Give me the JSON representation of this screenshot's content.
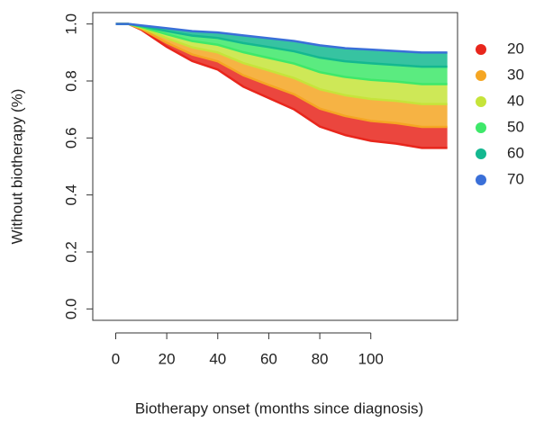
{
  "chart_data": {
    "type": "line",
    "x_label": "Biotherapy onset (months since diagnosis)",
    "y_label": "Without biotherapy (%)",
    "x": [
      0,
      5,
      10,
      20,
      30,
      40,
      50,
      60,
      70,
      80,
      90,
      100,
      110,
      120,
      130
    ],
    "series": [
      {
        "name": "20",
        "color": "#e8261c",
        "values": [
          1,
          1,
          0.98,
          0.92,
          0.87,
          0.84,
          0.78,
          0.74,
          0.7,
          0.64,
          0.61,
          0.59,
          0.58,
          0.565,
          0.565
        ]
      },
      {
        "name": "30",
        "color": "#f5a623",
        "values": [
          1,
          1,
          0.983,
          0.934,
          0.893,
          0.869,
          0.82,
          0.786,
          0.753,
          0.703,
          0.677,
          0.66,
          0.652,
          0.639,
          0.639
        ]
      },
      {
        "name": "40",
        "color": "#c6e43a",
        "values": [
          1,
          1,
          0.987,
          0.95,
          0.918,
          0.9,
          0.863,
          0.837,
          0.81,
          0.771,
          0.75,
          0.737,
          0.73,
          0.719,
          0.719
        ]
      },
      {
        "name": "50",
        "color": "#3ee86a",
        "values": [
          1,
          1,
          0.99,
          0.964,
          0.94,
          0.927,
          0.901,
          0.881,
          0.861,
          0.831,
          0.814,
          0.804,
          0.798,
          0.789,
          0.789
        ]
      },
      {
        "name": "60",
        "color": "#14b890",
        "values": [
          1,
          1,
          0.993,
          0.975,
          0.959,
          0.951,
          0.933,
          0.919,
          0.904,
          0.882,
          0.869,
          0.862,
          0.856,
          0.85,
          0.85
        ]
      },
      {
        "name": "70",
        "color": "#3a6fd8",
        "values": [
          1,
          1,
          0.995,
          0.985,
          0.975,
          0.97,
          0.96,
          0.95,
          0.94,
          0.925,
          0.915,
          0.91,
          0.905,
          0.9,
          0.9
        ]
      }
    ],
    "xlim": [
      -9,
      134
    ],
    "ylim": [
      -0.04,
      1.04
    ],
    "xticks": [
      0,
      20,
      40,
      60,
      80,
      100
    ],
    "yticks": [
      {
        "value": 0,
        "label": "0.0"
      },
      {
        "value": 0.2,
        "label": "0.2"
      },
      {
        "value": 0.4,
        "label": "0.4"
      },
      {
        "value": 0.6,
        "label": "0.6"
      },
      {
        "value": 0.8,
        "label": "0.8"
      },
      {
        "value": 1,
        "label": "1.0"
      }
    ],
    "legend": "right"
  }
}
